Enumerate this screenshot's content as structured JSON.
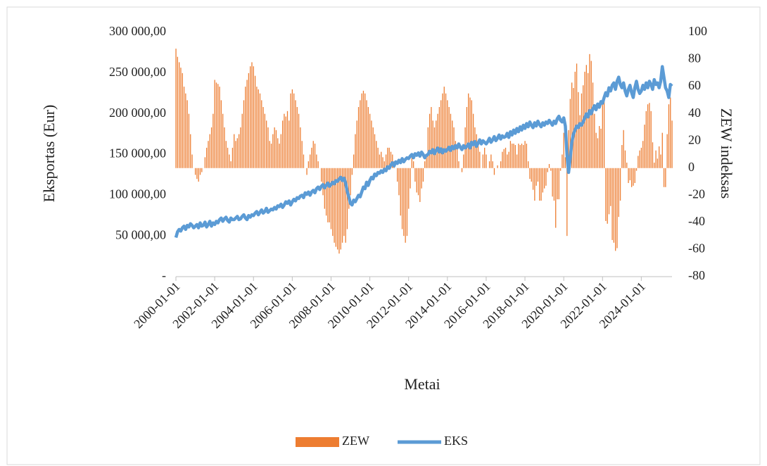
{
  "chart_data": {
    "type": "bar",
    "x_label": "Metai",
    "y_label": "Eksportas (Eur)",
    "y2_label": "ZEW indeksas",
    "categories": [
      "2000-01-01",
      null,
      null,
      null,
      null,
      null,
      null,
      null,
      null,
      null,
      null,
      null,
      null,
      null,
      null,
      null,
      null,
      null,
      null,
      null,
      null,
      null,
      null,
      null,
      "2002-01-01",
      null,
      null,
      null,
      null,
      null,
      null,
      null,
      null,
      null,
      null,
      null,
      null,
      null,
      null,
      null,
      null,
      null,
      null,
      null,
      null,
      null,
      null,
      null,
      "2004-01-01",
      null,
      null,
      null,
      null,
      null,
      null,
      null,
      null,
      null,
      null,
      null,
      null,
      null,
      null,
      null,
      null,
      null,
      null,
      null,
      null,
      null,
      null,
      null,
      "2006-01-01",
      null,
      null,
      null,
      null,
      null,
      null,
      null,
      null,
      null,
      null,
      null,
      null,
      null,
      null,
      null,
      null,
      null,
      null,
      null,
      null,
      null,
      null,
      null,
      "2008-01-01",
      null,
      null,
      null,
      null,
      null,
      null,
      null,
      null,
      null,
      null,
      null,
      null,
      null,
      null,
      null,
      null,
      null,
      null,
      null,
      null,
      null,
      null,
      null,
      "2010-01-01",
      null,
      null,
      null,
      null,
      null,
      null,
      null,
      null,
      null,
      null,
      null,
      null,
      null,
      null,
      null,
      null,
      null,
      null,
      null,
      null,
      null,
      null,
      null,
      "2012-01-01",
      null,
      null,
      null,
      null,
      null,
      null,
      null,
      null,
      null,
      null,
      null,
      null,
      null,
      null,
      null,
      null,
      null,
      null,
      null,
      null,
      null,
      null,
      null,
      "2014-01-01",
      null,
      null,
      null,
      null,
      null,
      null,
      null,
      null,
      null,
      null,
      null,
      null,
      null,
      null,
      null,
      null,
      null,
      null,
      null,
      null,
      null,
      null,
      null,
      "2016-01-01",
      null,
      null,
      null,
      null,
      null,
      null,
      null,
      null,
      null,
      null,
      null,
      null,
      null,
      null,
      null,
      null,
      null,
      null,
      null,
      null,
      null,
      null,
      null,
      "2018-01-01",
      null,
      null,
      null,
      null,
      null,
      null,
      null,
      null,
      null,
      null,
      null,
      null,
      null,
      null,
      null,
      null,
      null,
      null,
      null,
      null,
      null,
      null,
      null,
      "2020-01-01",
      null,
      null,
      null,
      null,
      null,
      null,
      null,
      null,
      null,
      null,
      null,
      null,
      null,
      null,
      null,
      null,
      null,
      null,
      null,
      null,
      null,
      null,
      null,
      "2022-01-01",
      null,
      null,
      null,
      null,
      null,
      null,
      null,
      null,
      null,
      null,
      null,
      null,
      null,
      null,
      null,
      null,
      null,
      null,
      null,
      null,
      null,
      null,
      null,
      "2024-01-01",
      null,
      null,
      null,
      null,
      null,
      null,
      null,
      null,
      null,
      null,
      null,
      null,
      null,
      null,
      null,
      null,
      null,
      null,
      null
    ],
    "series": [
      {
        "name": "ZEW",
        "type": "bar",
        "axis": "y2",
        "color": "#ed7d31",
        "values": [
          88,
          82,
          78,
          74,
          70,
          60,
          55,
          50,
          40,
          25,
          10,
          0,
          -5,
          -8,
          -10,
          -5,
          -3,
          0,
          8,
          15,
          20,
          25,
          30,
          40,
          65,
          63,
          62,
          60,
          50,
          40,
          30,
          20,
          15,
          10,
          5,
          15,
          25,
          20,
          22,
          25,
          30,
          40,
          50,
          60,
          65,
          70,
          75,
          78,
          75,
          68,
          60,
          58,
          55,
          50,
          45,
          40,
          35,
          30,
          20,
          18,
          25,
          30,
          28,
          22,
          18,
          25,
          35,
          40,
          38,
          42,
          35,
          55,
          58,
          55,
          50,
          45,
          40,
          30,
          20,
          10,
          0,
          -5,
          5,
          10,
          15,
          20,
          18,
          10,
          5,
          0,
          -10,
          -20,
          -30,
          -35,
          -40,
          -40,
          -45,
          -50,
          -55,
          -58,
          -60,
          -63,
          -60,
          -55,
          -50,
          -55,
          -45,
          -30,
          -20,
          -5,
          10,
          25,
          35,
          45,
          50,
          55,
          57,
          55,
          50,
          45,
          40,
          35,
          30,
          25,
          20,
          15,
          10,
          12,
          8,
          5,
          10,
          15,
          15,
          12,
          10,
          5,
          0,
          -10,
          -20,
          -35,
          -45,
          -50,
          -55,
          -50,
          -30,
          -15,
          10,
          5,
          -10,
          -18,
          -20,
          -25,
          -15,
          -10,
          5,
          8,
          30,
          40,
          45,
          35,
          30,
          35,
          40,
          45,
          50,
          55,
          60,
          55,
          50,
          45,
          40,
          35,
          30,
          20,
          15,
          5,
          0,
          -3,
          10,
          30,
          45,
          55,
          52,
          50,
          40,
          30,
          25,
          20,
          12,
          0,
          10,
          15,
          10,
          0,
          5,
          10,
          5,
          -5,
          0,
          2,
          0,
          5,
          12,
          14,
          15,
          10,
          12,
          20,
          18,
          18,
          17,
          10,
          18,
          17,
          18,
          17,
          20,
          18,
          5,
          -8,
          -10,
          -16,
          -24,
          -13,
          -10,
          -24,
          -24,
          -18,
          -15,
          -13,
          -3,
          3,
          -2,
          -21,
          -24,
          -44,
          -23,
          -23,
          -2,
          10,
          26,
          8,
          -50,
          28,
          51,
          63,
          59,
          71,
          77,
          56,
          39,
          55,
          61,
          71,
          76,
          70,
          84,
          79,
          63,
          40,
          26,
          22,
          31,
          29,
          51,
          54,
          -39,
          -41,
          -34,
          -28,
          -53,
          -55,
          -61,
          -59,
          -36,
          -24,
          17,
          28,
          13,
          4,
          -11,
          -9,
          -14,
          -13,
          -11,
          -2,
          9,
          13,
          15,
          20,
          32,
          42,
          47,
          48,
          42,
          19,
          4,
          13,
          7,
          16,
          10,
          26,
          -14,
          -14,
          25,
          47,
          52,
          35
        ]
      },
      {
        "name": "EKS",
        "type": "line",
        "axis": "y",
        "color": "#5b9bd5",
        "values": [
          48000,
          55000,
          58000,
          56000,
          60000,
          62000,
          58000,
          63000,
          61000,
          65000,
          63000,
          60000,
          62000,
          64000,
          60000,
          66000,
          62000,
          63000,
          67000,
          61000,
          64000,
          68000,
          62000,
          66000,
          64000,
          68000,
          66000,
          70000,
          72000,
          68000,
          71000,
          73000,
          69000,
          67000,
          72000,
          70000,
          70000,
          72000,
          74000,
          70000,
          71000,
          74000,
          76000,
          72000,
          70000,
          75000,
          73000,
          76000,
          75000,
          78000,
          80000,
          76000,
          79000,
          82000,
          78000,
          80000,
          84000,
          79000,
          81000,
          83000,
          82000,
          85000,
          83000,
          87000,
          86000,
          89000,
          85000,
          88000,
          92000,
          90000,
          93000,
          88000,
          92000,
          95000,
          93000,
          97000,
          96000,
          99000,
          100000,
          97000,
          103000,
          101000,
          104000,
          100000,
          104000,
          106000,
          103000,
          108000,
          110000,
          107000,
          111000,
          113000,
          109000,
          112000,
          115000,
          111000,
          113000,
          116000,
          114000,
          118000,
          117000,
          120000,
          122000,
          118000,
          121000,
          115000,
          105000,
          98000,
          90000,
          88000,
          94000,
          92000,
          96000,
          100000,
          98000,
          104000,
          110000,
          108000,
          116000,
          112000,
          118000,
          122000,
          120000,
          126000,
          124000,
          128000,
          127000,
          130000,
          128000,
          132000,
          130000,
          135000,
          133000,
          137000,
          140000,
          136000,
          141000,
          139000,
          143000,
          140000,
          145000,
          141000,
          144000,
          146000,
          145000,
          148000,
          150000,
          146000,
          151000,
          149000,
          152000,
          148000,
          153000,
          150000,
          146000,
          149000,
          150000,
          154000,
          152000,
          156000,
          151000,
          155000,
          158000,
          153000,
          157000,
          152000,
          156000,
          154000,
          156000,
          159000,
          155000,
          160000,
          157000,
          161000,
          158000,
          163000,
          159000,
          156000,
          161000,
          158000,
          160000,
          163000,
          158000,
          165000,
          162000,
          166000,
          160000,
          164000,
          168000,
          163000,
          167000,
          165000,
          163000,
          166000,
          170000,
          165000,
          168000,
          172000,
          167000,
          170000,
          174000,
          169000,
          173000,
          171000,
          172000,
          176000,
          171000,
          178000,
          174000,
          180000,
          176000,
          182000,
          178000,
          184000,
          180000,
          186000,
          182000,
          188000,
          184000,
          190000,
          186000,
          183000,
          189000,
          185000,
          191000,
          187000,
          184000,
          189000,
          186000,
          190000,
          188000,
          192000,
          189000,
          186000,
          191000,
          188000,
          194000,
          197000,
          192000,
          190000,
          195000,
          185000,
          150000,
          128000,
          145000,
          165000,
          175000,
          180000,
          185000,
          183000,
          188000,
          186000,
          190000,
          195000,
          200000,
          196000,
          204000,
          200000,
          206000,
          210000,
          205000,
          212000,
          208000,
          215000,
          213000,
          220000,
          226000,
          222000,
          232000,
          228000,
          235000,
          238000,
          230000,
          240000,
          245000,
          236000,
          232000,
          238000,
          228000,
          222000,
          230000,
          235000,
          226000,
          220000,
          232000,
          240000,
          230000,
          225000,
          228000,
          235000,
          230000,
          238000,
          232000,
          240000,
          236000,
          230000,
          242000,
          236000,
          238000,
          232000,
          240000,
          258000,
          245000,
          232000,
          228000,
          220000,
          236000,
          234000
        ]
      }
    ],
    "ylim": [
      0,
      300000
    ],
    "yticks": [
      {
        "value": 0,
        "label": "-"
      },
      {
        "value": 50000,
        "label": "50 000,00"
      },
      {
        "value": 100000,
        "label": "100 000,00"
      },
      {
        "value": 150000,
        "label": "150 000,00"
      },
      {
        "value": 200000,
        "label": "200 000,00"
      },
      {
        "value": 250000,
        "label": "250 000,00"
      },
      {
        "value": 300000,
        "label": "300 000,00"
      }
    ],
    "y2lim": [
      -80,
      100
    ],
    "y2ticks": [
      -80,
      -60,
      -40,
      -20,
      0,
      20,
      40,
      60,
      80,
      100
    ],
    "legend": "bottom"
  }
}
